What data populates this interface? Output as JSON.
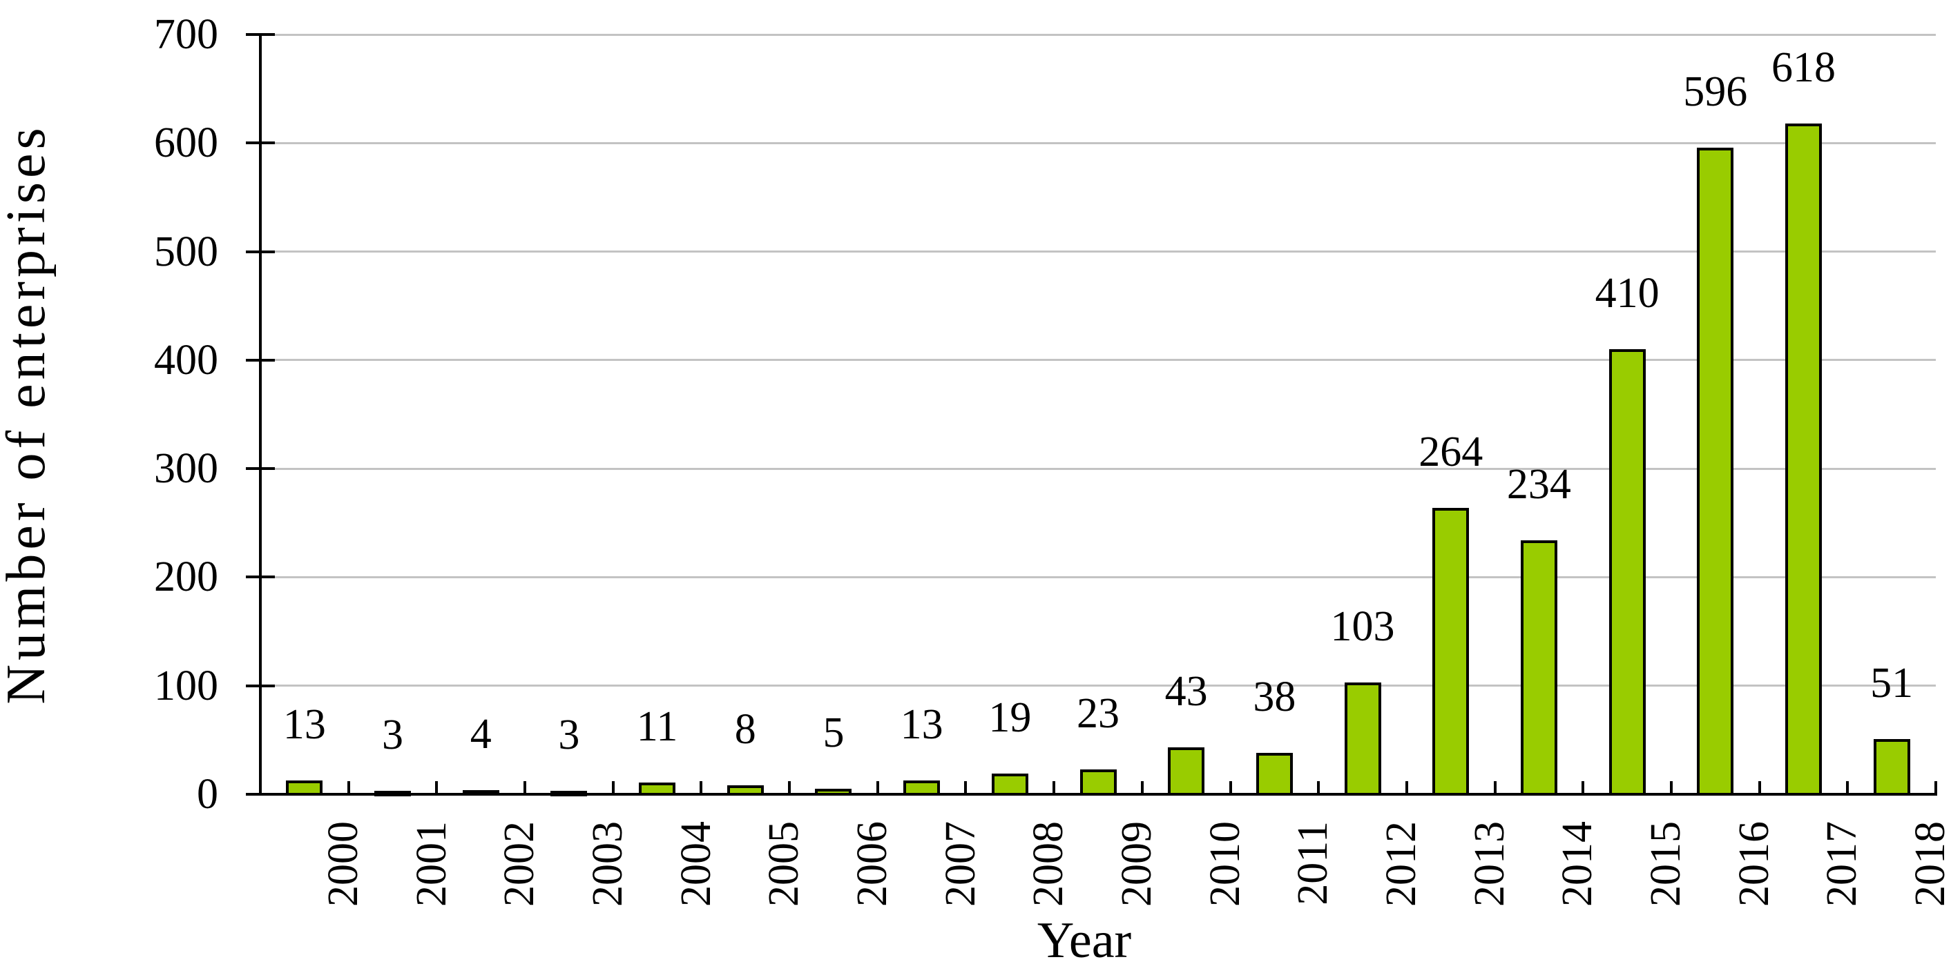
{
  "chart_data": {
    "type": "bar",
    "title": "",
    "xlabel": "Year",
    "ylabel": "Number of enterprises",
    "categories": [
      "2000",
      "2001",
      "2002",
      "2003",
      "2004",
      "2005",
      "2006",
      "2007",
      "2008",
      "2009",
      "2010",
      "2011",
      "2012",
      "2013",
      "2014",
      "2015",
      "2016",
      "2017",
      "2018"
    ],
    "values": [
      13,
      3,
      4,
      3,
      11,
      8,
      5,
      13,
      19,
      23,
      43,
      38,
      103,
      264,
      234,
      410,
      596,
      618,
      51
    ],
    "data_labels_shown": true,
    "ylim": [
      0,
      700
    ],
    "ytick_step": 100,
    "ytick_labels": [
      "0",
      "100",
      "200",
      "300",
      "400",
      "500",
      "600",
      "700"
    ],
    "grid": true,
    "legend": "none",
    "colors": {
      "bar_fill": "#99CC00",
      "bar_border": "#000000",
      "gridline": "#C3C3C3",
      "axis": "#000000",
      "text": "#000000",
      "background": "#FFFFFF"
    }
  }
}
